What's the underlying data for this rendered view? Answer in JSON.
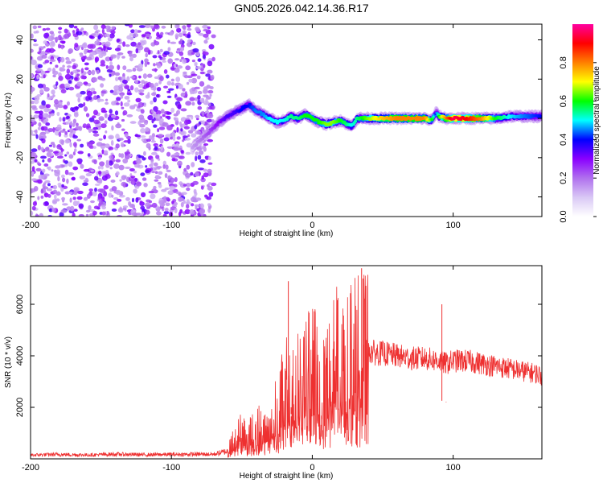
{
  "title": "GN05.2026.042.14.36.R17",
  "chart_data": [
    {
      "type": "heatmap",
      "name": "spectrogram",
      "xlabel": "Height of straight line (km)",
      "ylabel": "Frequency (Hz)",
      "xlim": [
        -200,
        163
      ],
      "ylim": [
        -50,
        48
      ],
      "xticks": [
        "-200",
        "-100",
        "0",
        "100"
      ],
      "yticks": [
        "-40",
        "-20",
        "0",
        "20",
        "40"
      ],
      "xtick_values": [
        -200,
        -100,
        0,
        100
      ],
      "ytick_values": [
        -40,
        -20,
        0,
        20,
        40
      ],
      "noise_region": [
        -200,
        -70
      ],
      "signal_track": {
        "x": [
          -85,
          -78,
          -72,
          -66,
          -60,
          -55,
          -50,
          -45,
          -40,
          -35,
          -30,
          -25,
          -20,
          -15,
          -10,
          -5,
          0,
          5,
          10,
          15,
          20,
          25,
          28,
          32,
          40,
          50,
          60,
          70,
          80,
          85,
          88,
          90,
          95,
          100,
          110,
          120,
          130,
          140,
          150,
          163
        ],
        "y": [
          -15,
          -10,
          -6,
          -2,
          1,
          3,
          5,
          7,
          4,
          2,
          0,
          -2,
          -1,
          1,
          0,
          2,
          0,
          -2,
          -3,
          -2,
          -1,
          -3,
          -4,
          0,
          0,
          0,
          0,
          0,
          0,
          -1,
          3,
          1,
          0,
          0,
          0,
          0,
          0,
          1,
          1,
          1
        ],
        "amplitude": [
          0.15,
          0.2,
          0.25,
          0.3,
          0.35,
          0.35,
          0.4,
          0.4,
          0.45,
          0.45,
          0.5,
          0.5,
          0.5,
          0.55,
          0.55,
          0.6,
          0.6,
          0.6,
          0.65,
          0.65,
          0.6,
          0.55,
          0.5,
          0.55,
          0.65,
          0.75,
          0.8,
          0.8,
          0.8,
          0.6,
          0.4,
          0.6,
          0.8,
          0.95,
          0.9,
          0.8,
          0.6,
          0.5,
          0.45,
          0.4
        ]
      },
      "colorbar": {
        "label": "Normalized spectral amplitude",
        "ticks": [
          "0.0",
          "0.2",
          "0.4",
          "0.6",
          "0.8"
        ],
        "tick_values": [
          0.0,
          0.2,
          0.4,
          0.6,
          0.8
        ],
        "range": [
          0,
          1
        ],
        "colors": [
          "#ffffff",
          "#d9c8f5",
          "#b070ee",
          "#8a00ff",
          "#0000ff",
          "#00ffff",
          "#00ff00",
          "#ffff00",
          "#ff8000",
          "#ff0000",
          "#ff00a0"
        ]
      }
    },
    {
      "type": "line",
      "name": "snr",
      "xlabel": "Height of straight line (km)",
      "ylabel": "SNR (10 * v/v)",
      "xlim": [
        -200,
        163
      ],
      "ylim": [
        0,
        7500
      ],
      "xticks": [
        "-200",
        "-100",
        "0",
        "100"
      ],
      "yticks": [
        "2000",
        "4000",
        "6000"
      ],
      "xtick_values": [
        -200,
        -100,
        0,
        100
      ],
      "ytick_values": [
        2000,
        4000,
        6000
      ],
      "color": "#ee3030",
      "x": [
        -200,
        -180,
        -160,
        -140,
        -120,
        -100,
        -80,
        -70,
        -60,
        -55,
        -50,
        -45,
        -40,
        -35,
        -30,
        -25,
        -20,
        -15,
        -10,
        -5,
        0,
        5,
        10,
        15,
        20,
        25,
        30,
        35,
        40,
        45,
        50,
        60,
        70,
        80,
        90,
        95,
        100,
        110,
        120,
        130,
        140,
        150,
        160,
        163
      ],
      "y": [
        150,
        170,
        150,
        180,
        160,
        170,
        180,
        180,
        300,
        800,
        1100,
        900,
        1300,
        1200,
        1500,
        2000,
        2600,
        2900,
        3000,
        3300,
        3400,
        3700,
        3800,
        3900,
        4000,
        4200,
        4300,
        4400,
        4200,
        4100,
        4100,
        4000,
        3900,
        3900,
        3800,
        3700,
        3800,
        3800,
        3700,
        3600,
        3500,
        3400,
        3300,
        3200
      ],
      "spikes": {
        "x": [
          -17,
          -15,
          35,
          36,
          38,
          92,
          95
        ],
        "y": [
          6900,
          2000,
          7400,
          7000,
          6600,
          6000,
          2200
        ]
      }
    }
  ]
}
